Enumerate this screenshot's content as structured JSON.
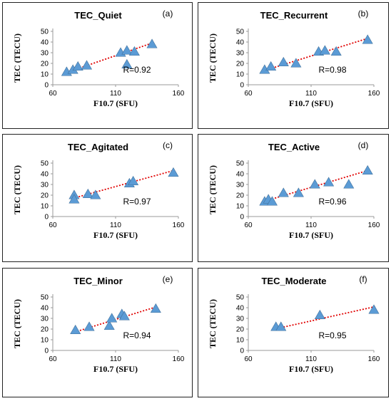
{
  "chart_data": [
    {
      "type": "scatter",
      "panel_tag": "(a)",
      "title": "TEC_Quiet",
      "xlabel": "F10.7 (SFU)",
      "ylabel": "TEC (TECU)",
      "xlim": [
        60,
        160
      ],
      "ylim": [
        0,
        50
      ],
      "xticks": [
        "60",
        "110",
        "160"
      ],
      "yticks": [
        "0",
        "10",
        "20",
        "30",
        "40",
        "50"
      ],
      "x": [
        71,
        76,
        80,
        87,
        114,
        119,
        119,
        125,
        139
      ],
      "y": [
        12,
        14,
        17,
        18,
        30,
        32,
        19,
        31,
        38
      ],
      "trendline": {
        "style": "dotted",
        "color": "#e00000",
        "from": [
          70,
          11
        ],
        "to": [
          139,
          39
        ]
      },
      "r_label": "R=0.92",
      "legend": "none",
      "grid": false
    },
    {
      "type": "scatter",
      "panel_tag": "(b)",
      "title": "TEC_Recurrent",
      "xlabel": "F10.7 (SFU)",
      "ylabel": "TEC (TECU)",
      "xlim": [
        60,
        160
      ],
      "ylim": [
        0,
        50
      ],
      "xticks": [
        "60",
        "110",
        "160"
      ],
      "yticks": [
        "0",
        "10",
        "20",
        "30",
        "40",
        "50"
      ],
      "x": [
        73,
        78,
        88,
        98,
        116,
        121,
        130,
        155
      ],
      "y": [
        14,
        17,
        21,
        20,
        31,
        32,
        31,
        42
      ],
      "trendline": {
        "style": "dotted",
        "color": "#e00000",
        "from": [
          72,
          13
        ],
        "to": [
          154,
          43
        ]
      },
      "r_label": "R=0.98",
      "legend": "none",
      "grid": false
    },
    {
      "type": "scatter",
      "panel_tag": "(c)",
      "title": "TEC_Agitated",
      "xlabel": "F10.7 (SFU)",
      "ylabel": "TEC (TECU)",
      "xlim": [
        60,
        160
      ],
      "ylim": [
        0,
        50
      ],
      "xticks": [
        "60",
        "110",
        "160"
      ],
      "yticks": [
        "0",
        "10",
        "20",
        "30",
        "40",
        "50"
      ],
      "x": [
        77,
        77,
        88,
        94,
        121,
        124,
        156
      ],
      "y": [
        20,
        16,
        21,
        20,
        31,
        33,
        41
      ],
      "trendline": {
        "style": "dotted",
        "color": "#e00000",
        "from": [
          76,
          17
        ],
        "to": [
          156,
          43
        ]
      },
      "r_label": "R=0.97",
      "legend": "none",
      "grid": false
    },
    {
      "type": "scatter",
      "panel_tag": "(d)",
      "title": "TEC_Active",
      "xlabel": "F10.7 (SFU)",
      "ylabel": "TEC (TECU)",
      "xlim": [
        60,
        160
      ],
      "ylim": [
        0,
        50
      ],
      "xticks": [
        "60",
        "110",
        "160"
      ],
      "yticks": [
        "0",
        "10",
        "20",
        "30",
        "40",
        "50"
      ],
      "x": [
        73,
        76,
        79,
        88,
        100,
        113,
        124,
        140,
        155
      ],
      "y": [
        14,
        16,
        14,
        22,
        22,
        30,
        32,
        30,
        43
      ],
      "trendline": {
        "style": "dotted",
        "color": "#e00000",
        "from": [
          72,
          14
        ],
        "to": [
          155,
          43
        ]
      },
      "r_label": "R=0.96",
      "legend": "none",
      "grid": false
    },
    {
      "type": "scatter",
      "panel_tag": "(e)",
      "title": "TEC_Minor",
      "xlabel": "F10.7 (SFU)",
      "ylabel": "TEC (TECU)",
      "xlim": [
        60,
        160
      ],
      "ylim": [
        0,
        50
      ],
      "xticks": [
        "60",
        "110",
        "160"
      ],
      "yticks": [
        "0",
        "10",
        "20",
        "30",
        "40",
        "50"
      ],
      "x": [
        78,
        89,
        105,
        107,
        115,
        117,
        142
      ],
      "y": [
        19,
        22,
        23,
        30,
        34,
        32,
        39
      ],
      "trendline": {
        "style": "dotted",
        "color": "#e00000",
        "from": [
          77,
          17
        ],
        "to": [
          143,
          41
        ]
      },
      "r_label": "R=0.94",
      "legend": "none",
      "grid": false
    },
    {
      "type": "scatter",
      "panel_tag": "(f)",
      "title": "TEC_Moderate",
      "xlabel": "F10.7 (SFU)",
      "ylabel": "TEC (TECU)",
      "xlim": [
        60,
        160
      ],
      "ylim": [
        0,
        50
      ],
      "xticks": [
        "60",
        "110",
        "160"
      ],
      "yticks": [
        "0",
        "10",
        "20",
        "30",
        "40",
        "50"
      ],
      "x": [
        82,
        86,
        117,
        160
      ],
      "y": [
        22,
        22,
        33,
        38
      ],
      "trendline": {
        "style": "dotted",
        "color": "#e00000",
        "from": [
          81,
          20
        ],
        "to": [
          161,
          41
        ]
      },
      "r_label": "R=0.95",
      "legend": "none",
      "grid": false
    }
  ]
}
